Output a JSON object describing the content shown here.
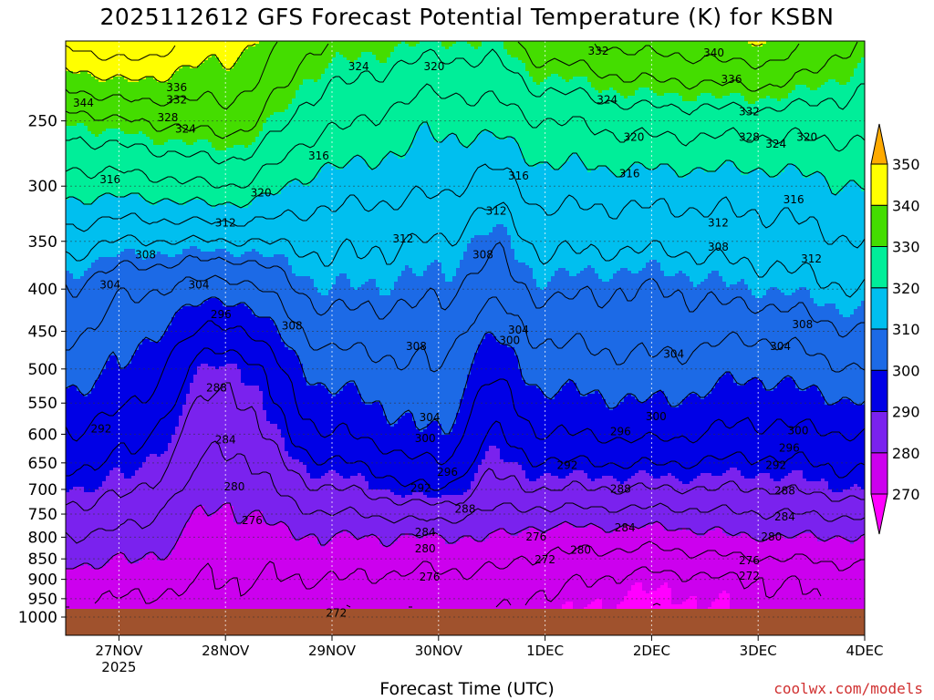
{
  "title": "2025112612 GFS Forecast Potential Temperature (K) for KSBN",
  "credit": "coolwx.com/models",
  "chart_data": {
    "type": "heatmap",
    "title": "2025112612 GFS Forecast Potential Temperature (K) for KSBN",
    "xlabel": "Forecast Time (UTC)",
    "ylabel": "",
    "x_ticks": [
      {
        "label": "27NOV",
        "sub": "2025",
        "hour": 12
      },
      {
        "label": "28NOV",
        "sub": "",
        "hour": 36
      },
      {
        "label": "29NOV",
        "sub": "",
        "hour": 60
      },
      {
        "label": "30NOV",
        "sub": "",
        "hour": 84
      },
      {
        "label": "1DEC",
        "sub": "",
        "hour": 108
      },
      {
        "label": "2DEC",
        "sub": "",
        "hour": 132
      },
      {
        "label": "3DEC",
        "sub": "",
        "hour": 156
      },
      {
        "label": "4DEC",
        "sub": "",
        "hour": 180
      }
    ],
    "x_range_hours": [
      0,
      180
    ],
    "y_ticks": [
      250,
      300,
      350,
      400,
      450,
      500,
      550,
      600,
      650,
      700,
      750,
      800,
      850,
      900,
      950,
      1000
    ],
    "y_range": [
      200,
      1000
    ],
    "y_scale": "log",
    "grid": true,
    "colorbar": {
      "levels": [
        270,
        280,
        290,
        300,
        310,
        320,
        330,
        340,
        350
      ],
      "colors": [
        "#ff00ff",
        "#cc00ee",
        "#7a22ee",
        "#0000e6",
        "#1c6ae6",
        "#00bfef",
        "#00ee99",
        "#44dd00",
        "#ffff00",
        "#ffaa00"
      ]
    },
    "profiles": [
      {
        "hour": 0,
        "levels": [
          [
            1000,
            276
          ],
          [
            900,
            278
          ],
          [
            800,
            284
          ],
          [
            700,
            290
          ],
          [
            600,
            296
          ],
          [
            500,
            302
          ],
          [
            450,
            305
          ],
          [
            400,
            308
          ],
          [
            350,
            314
          ],
          [
            300,
            322
          ],
          [
            250,
            330
          ],
          [
            200,
            345
          ]
        ]
      },
      {
        "hour": 12,
        "levels": [
          [
            1000,
            274
          ],
          [
            900,
            278
          ],
          [
            800,
            283
          ],
          [
            700,
            289
          ],
          [
            600,
            294
          ],
          [
            500,
            300
          ],
          [
            450,
            302
          ],
          [
            400,
            305
          ],
          [
            350,
            312
          ],
          [
            300,
            322
          ],
          [
            250,
            332
          ],
          [
            200,
            348
          ]
        ]
      },
      {
        "hour": 36,
        "levels": [
          [
            1000,
            274
          ],
          [
            900,
            276
          ],
          [
            800,
            278
          ],
          [
            700,
            281
          ],
          [
            600,
            285
          ],
          [
            500,
            289
          ],
          [
            450,
            295
          ],
          [
            400,
            302
          ],
          [
            350,
            312
          ],
          [
            300,
            324
          ],
          [
            250,
            334
          ],
          [
            200,
            342
          ]
        ]
      },
      {
        "hour": 60,
        "levels": [
          [
            1000,
            272
          ],
          [
            900,
            276
          ],
          [
            800,
            280
          ],
          [
            700,
            288
          ],
          [
            600,
            296
          ],
          [
            500,
            302
          ],
          [
            450,
            306
          ],
          [
            400,
            310
          ],
          [
            350,
            313
          ],
          [
            300,
            318
          ],
          [
            250,
            325
          ],
          [
            200,
            332
          ]
        ]
      },
      {
        "hour": 84,
        "levels": [
          [
            1000,
            272
          ],
          [
            900,
            275
          ],
          [
            800,
            280
          ],
          [
            700,
            292
          ],
          [
            600,
            300
          ],
          [
            500,
            304
          ],
          [
            450,
            306
          ],
          [
            400,
            309
          ],
          [
            350,
            312
          ],
          [
            300,
            317
          ],
          [
            250,
            321
          ],
          [
            200,
            330
          ]
        ]
      },
      {
        "hour": 96,
        "levels": [
          [
            1000,
            272
          ],
          [
            900,
            275
          ],
          [
            800,
            280
          ],
          [
            700,
            287
          ],
          [
            600,
            292
          ],
          [
            500,
            297
          ],
          [
            450,
            301
          ],
          [
            400,
            306
          ],
          [
            350,
            309
          ],
          [
            300,
            314
          ],
          [
            250,
            322
          ],
          [
            200,
            330
          ]
        ]
      },
      {
        "hour": 108,
        "levels": [
          [
            1000,
            270
          ],
          [
            900,
            273
          ],
          [
            800,
            278
          ],
          [
            700,
            288
          ],
          [
            600,
            296
          ],
          [
            500,
            302
          ],
          [
            450,
            305
          ],
          [
            400,
            309
          ],
          [
            350,
            313
          ],
          [
            300,
            318
          ],
          [
            250,
            324
          ],
          [
            200,
            335
          ]
        ]
      },
      {
        "hour": 132,
        "levels": [
          [
            1000,
            268
          ],
          [
            900,
            271
          ],
          [
            800,
            278
          ],
          [
            700,
            288
          ],
          [
            600,
            297
          ],
          [
            500,
            303
          ],
          [
            450,
            306
          ],
          [
            400,
            308
          ],
          [
            350,
            313
          ],
          [
            300,
            318
          ],
          [
            250,
            326
          ],
          [
            200,
            338
          ]
        ]
      },
      {
        "hour": 156,
        "levels": [
          [
            1000,
            270
          ],
          [
            900,
            272
          ],
          [
            800,
            280
          ],
          [
            700,
            288
          ],
          [
            600,
            295
          ],
          [
            500,
            301
          ],
          [
            450,
            305
          ],
          [
            400,
            310
          ],
          [
            350,
            314
          ],
          [
            300,
            318
          ],
          [
            250,
            326
          ],
          [
            200,
            340
          ]
        ]
      },
      {
        "hour": 180,
        "levels": [
          [
            1000,
            272
          ],
          [
            900,
            274
          ],
          [
            800,
            280
          ],
          [
            700,
            290
          ],
          [
            600,
            296
          ],
          [
            500,
            304
          ],
          [
            450,
            308
          ],
          [
            400,
            312
          ],
          [
            350,
            316
          ],
          [
            300,
            320
          ],
          [
            250,
            326
          ],
          [
            200,
            332
          ]
        ]
      }
    ],
    "contour_labels": [
      {
        "text": "344",
        "hour": 4,
        "p": 238
      },
      {
        "text": "336",
        "hour": 25,
        "p": 228
      },
      {
        "text": "332",
        "hour": 25,
        "p": 236
      },
      {
        "text": "328",
        "hour": 23,
        "p": 248
      },
      {
        "text": "324",
        "hour": 27,
        "p": 256
      },
      {
        "text": "324",
        "hour": 66,
        "p": 215
      },
      {
        "text": "320",
        "hour": 83,
        "p": 215
      },
      {
        "text": "332",
        "hour": 120,
        "p": 206
      },
      {
        "text": "340",
        "hour": 146,
        "p": 207
      },
      {
        "text": "336",
        "hour": 150,
        "p": 223
      },
      {
        "text": "324",
        "hour": 122,
        "p": 236
      },
      {
        "text": "332",
        "hour": 154,
        "p": 244
      },
      {
        "text": "320",
        "hour": 128,
        "p": 262
      },
      {
        "text": "328",
        "hour": 154,
        "p": 262
      },
      {
        "text": "324",
        "hour": 160,
        "p": 267
      },
      {
        "text": "320",
        "hour": 167,
        "p": 262
      },
      {
        "text": "316",
        "hour": 57,
        "p": 276
      },
      {
        "text": "316",
        "hour": 10,
        "p": 295
      },
      {
        "text": "320",
        "hour": 44,
        "p": 306
      },
      {
        "text": "316",
        "hour": 102,
        "p": 292
      },
      {
        "text": "316",
        "hour": 127,
        "p": 290
      },
      {
        "text": "316",
        "hour": 164,
        "p": 312
      },
      {
        "text": "312",
        "hour": 36,
        "p": 333
      },
      {
        "text": "312",
        "hour": 76,
        "p": 348
      },
      {
        "text": "312",
        "hour": 97,
        "p": 322
      },
      {
        "text": "312",
        "hour": 147,
        "p": 333
      },
      {
        "text": "312",
        "hour": 168,
        "p": 368
      },
      {
        "text": "308",
        "hour": 18,
        "p": 364
      },
      {
        "text": "308",
        "hour": 94,
        "p": 364
      },
      {
        "text": "308",
        "hour": 147,
        "p": 356
      },
      {
        "text": "304",
        "hour": 10,
        "p": 396
      },
      {
        "text": "304",
        "hour": 30,
        "p": 396
      },
      {
        "text": "296",
        "hour": 35,
        "p": 430
      },
      {
        "text": "308",
        "hour": 51,
        "p": 444
      },
      {
        "text": "308",
        "hour": 79,
        "p": 470
      },
      {
        "text": "304",
        "hour": 102,
        "p": 449
      },
      {
        "text": "300",
        "hour": 100,
        "p": 462
      },
      {
        "text": "304",
        "hour": 137,
        "p": 480
      },
      {
        "text": "304",
        "hour": 161,
        "p": 470
      },
      {
        "text": "308",
        "hour": 166,
        "p": 442
      },
      {
        "text": "288",
        "hour": 34,
        "p": 528
      },
      {
        "text": "304",
        "hour": 82,
        "p": 573
      },
      {
        "text": "300",
        "hour": 81,
        "p": 608
      },
      {
        "text": "300",
        "hour": 133,
        "p": 572
      },
      {
        "text": "300",
        "hour": 165,
        "p": 595
      },
      {
        "text": "292",
        "hour": 8,
        "p": 592
      },
      {
        "text": "284",
        "hour": 36,
        "p": 610
      },
      {
        "text": "296",
        "hour": 125,
        "p": 596
      },
      {
        "text": "296",
        "hour": 163,
        "p": 624
      },
      {
        "text": "296",
        "hour": 86,
        "p": 668
      },
      {
        "text": "292",
        "hour": 113,
        "p": 655
      },
      {
        "text": "292",
        "hour": 160,
        "p": 655
      },
      {
        "text": "292",
        "hour": 80,
        "p": 698
      },
      {
        "text": "288",
        "hour": 125,
        "p": 700
      },
      {
        "text": "280",
        "hour": 38,
        "p": 696
      },
      {
        "text": "288",
        "hour": 90,
        "p": 740
      },
      {
        "text": "288",
        "hour": 162,
        "p": 704
      },
      {
        "text": "284",
        "hour": 162,
        "p": 757
      },
      {
        "text": "276",
        "hour": 42,
        "p": 764
      },
      {
        "text": "284",
        "hour": 126,
        "p": 780
      },
      {
        "text": "284",
        "hour": 81,
        "p": 790
      },
      {
        "text": "280",
        "hour": 159,
        "p": 800
      },
      {
        "text": "276",
        "hour": 106,
        "p": 800
      },
      {
        "text": "280",
        "hour": 116,
        "p": 830
      },
      {
        "text": "280",
        "hour": 81,
        "p": 827
      },
      {
        "text": "272",
        "hour": 108,
        "p": 853
      },
      {
        "text": "276",
        "hour": 154,
        "p": 855
      },
      {
        "text": "272",
        "hour": 154,
        "p": 893
      },
      {
        "text": "276",
        "hour": 82,
        "p": 895
      },
      {
        "text": "272",
        "hour": 61,
        "p": 990
      }
    ]
  }
}
